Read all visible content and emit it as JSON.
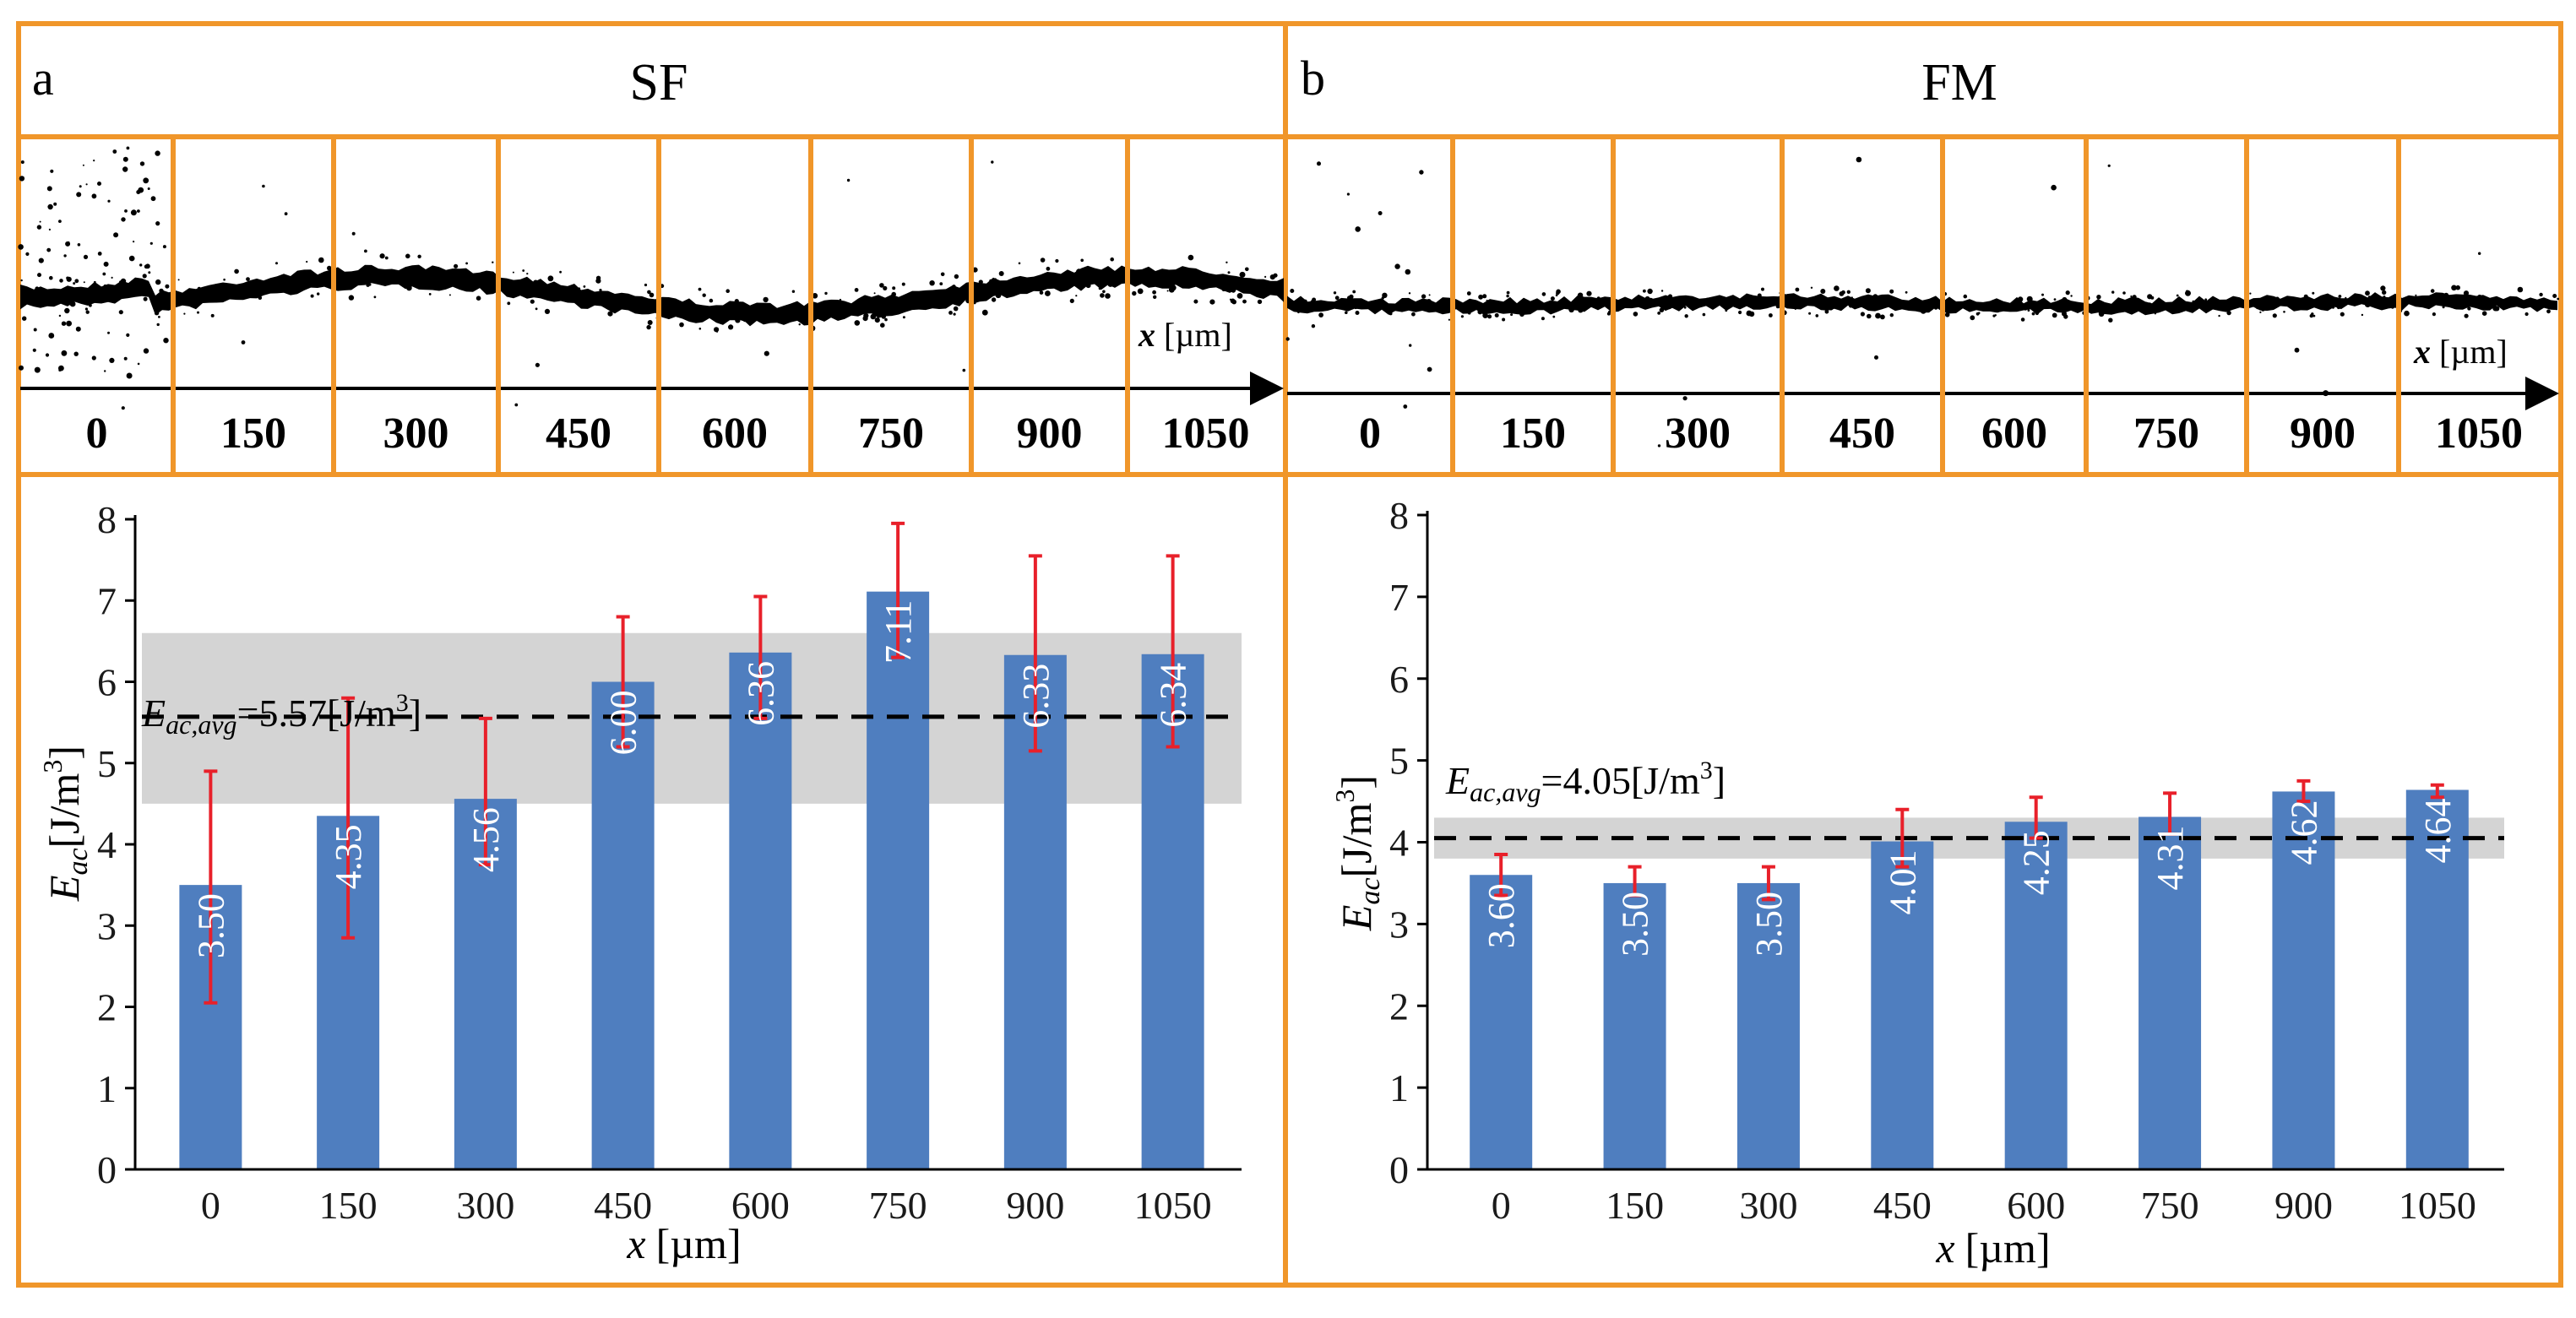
{
  "colors": {
    "frame": "#F0962A",
    "bar": "#4F7EBF",
    "error": "#E8202A",
    "band": "#D4D4D4",
    "label": "#FFFFFF",
    "text": "#1A1A1A"
  },
  "panels": [
    {
      "letter": "a",
      "title": "SF",
      "strip_labels": [
        "0",
        "150",
        "300",
        "450",
        "600",
        "750",
        "900",
        "1050"
      ],
      "x_marker_var": "x",
      "x_marker_unit": "[µm]",
      "avg_symbol": "E",
      "avg_sub": "ac,avg",
      "avg_text": "=5.57[J/m",
      "avg_sup": "3",
      "avg_end": "]"
    },
    {
      "letter": "b",
      "title": "FM",
      "strip_labels": [
        "0",
        "150",
        "300",
        "450",
        "600",
        "750",
        "900",
        "1050"
      ],
      "x_marker_var": "x",
      "x_marker_unit": "[µm]",
      "avg_symbol": "E",
      "avg_sub": "ac,avg",
      "avg_text": "=4.05[J/m",
      "avg_sup": "3",
      "avg_end": "]"
    }
  ],
  "chart_data": [
    {
      "type": "bar",
      "panel": "a",
      "title": "SF",
      "categories": [
        "0",
        "150",
        "300",
        "450",
        "600",
        "750",
        "900",
        "1050"
      ],
      "values": [
        3.5,
        4.35,
        4.56,
        6.0,
        6.36,
        7.11,
        6.33,
        6.34
      ],
      "value_labels": [
        "3.50",
        "4.35",
        "4.56",
        "6.00",
        "6.36",
        "7.11",
        "6.33",
        "6.34"
      ],
      "error_low": [
        2.05,
        2.85,
        3.75,
        5.2,
        5.55,
        6.3,
        5.15,
        5.2
      ],
      "error_high": [
        4.9,
        5.8,
        5.55,
        6.8,
        7.05,
        7.95,
        7.55,
        7.55
      ],
      "avg": 5.57,
      "band": [
        4.5,
        6.6
      ],
      "ylim": [
        0,
        8
      ],
      "yticks": [
        "0",
        "1",
        "2",
        "3",
        "4",
        "5",
        "6",
        "7",
        "8"
      ],
      "ylabel_main": "E",
      "ylabel_sub": "ac",
      "ylabel_unit": "[J/m",
      "ylabel_sup": "3",
      "ylabel_end": "]",
      "xlabel_var": "x",
      "xlabel_unit": "[µm]"
    },
    {
      "type": "bar",
      "panel": "b",
      "title": "FM",
      "categories": [
        "0",
        "150",
        "300",
        "450",
        "600",
        "750",
        "900",
        "1050"
      ],
      "values": [
        3.6,
        3.5,
        3.5,
        4.01,
        4.25,
        4.31,
        4.62,
        4.64
      ],
      "value_labels": [
        "3.60",
        "3.50",
        "3.50",
        "4.01",
        "4.25",
        "4.31",
        "4.62",
        "4.64"
      ],
      "error_low": [
        3.35,
        3.35,
        3.3,
        3.7,
        4.05,
        4.1,
        4.5,
        4.55
      ],
      "error_high": [
        3.85,
        3.7,
        3.7,
        4.4,
        4.55,
        4.6,
        4.75,
        4.7
      ],
      "avg": 4.05,
      "band": [
        3.8,
        4.3
      ],
      "ylim": [
        0,
        8
      ],
      "yticks": [
        "0",
        "1",
        "2",
        "3",
        "4",
        "5",
        "6",
        "7",
        "8"
      ],
      "ylabel_main": "E",
      "ylabel_sub": "ac",
      "ylabel_unit": "[J/m",
      "ylabel_sup": "3",
      "ylabel_end": "]",
      "xlabel_var": "x",
      "xlabel_unit": "[µm]"
    }
  ]
}
